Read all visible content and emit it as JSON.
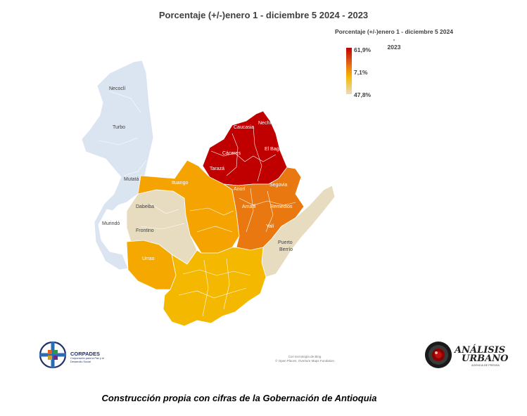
{
  "title": "Porcentaje (+/-)enero 1 - diciembre 5 2024 - 2023",
  "legend": {
    "title_line1": "Porcentaje (+/-)enero 1 - diciembre 5 2024 -",
    "title_line2": "2023",
    "max_label": "61,9%",
    "mid_label": "7,1%",
    "min_label": "47,8%",
    "colors": [
      "#c00000",
      "#f5b800",
      "#e8dcc0"
    ]
  },
  "regions": [
    {
      "name": "Necoclí",
      "color": "#dbe5f1"
    },
    {
      "name": "Turbo",
      "color": "#dbe5f1"
    },
    {
      "name": "Mutatá",
      "color": "#dbe5f1"
    },
    {
      "name": "Murindó",
      "color": "#dbe5f1"
    },
    {
      "name": "Dabeiba",
      "color": "#e8dcc0"
    },
    {
      "name": "Frontino",
      "color": "#e8dcc0"
    },
    {
      "name": "Urrao",
      "color": "#f5a800"
    },
    {
      "name": "Ituango",
      "color": "#f5a300"
    },
    {
      "name": "Tarazá",
      "color": "#c00000"
    },
    {
      "name": "Cáceres",
      "color": "#c00000"
    },
    {
      "name": "Caucasia",
      "color": "#c00000"
    },
    {
      "name": "Nechí",
      "color": "#c00000"
    },
    {
      "name": "El Bagre",
      "color": "#c00000"
    },
    {
      "name": "Anorí",
      "color": "#e86d10"
    },
    {
      "name": "Segovia",
      "color": "#e8780f"
    },
    {
      "name": "Amalfi",
      "color": "#e8780f"
    },
    {
      "name": "Remedios",
      "color": "#e8780f"
    },
    {
      "name": "Yalí",
      "color": "#e86d10"
    },
    {
      "name": "Puerto Berrío",
      "color": "#e8dcc0"
    }
  ],
  "map_credit_line1": "Con tecnología de Bing",
  "map_credit_line2": "© Open Places, Overture Maps Fundation",
  "logos": {
    "corpades_name": "CORPADES",
    "corpades_sub": "Corporación para la Paz y el Desarrollo Social",
    "au_name_line1": "ANÁLISIS",
    "au_name_line2": "URBANO",
    "au_sub": "AGENCIA DE PRENSA"
  },
  "caption": "Construcción propia con cifras de la Gobernación de Antioquia"
}
